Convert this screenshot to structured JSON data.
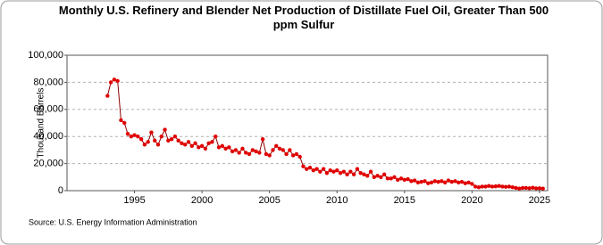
{
  "chart_data": {
    "type": "line",
    "title": "Monthly U.S. Refinery and Blender Net Production of Distillate Fuel Oil, Greater Than 500 ppm Sulfur",
    "y_label": "Thousand Barrels",
    "source": "Source: U.S. Energy Information Administration",
    "color": "#8b0000",
    "marker_color": "#e00000",
    "grid": true,
    "xlim": [
      1990,
      2025.6
    ],
    "xticks": [
      1995,
      2000,
      2005,
      2010,
      2015,
      2020,
      2025
    ],
    "ylim": [
      0,
      100000
    ],
    "yticks": [
      0,
      {
        "value": 20000,
        "label": "20,000"
      },
      {
        "value": 40000,
        "label": "40,000"
      },
      {
        "value": 60000,
        "label": "60,000"
      },
      {
        "value": 80000,
        "label": "80,000"
      },
      {
        "value": 100000,
        "label": "100,000"
      }
    ],
    "x": [
      1993,
      1993.25,
      1993.5,
      1993.75,
      1994,
      1994.25,
      1994.5,
      1994.75,
      1995,
      1995.25,
      1995.5,
      1995.75,
      1996,
      1996.25,
      1996.5,
      1996.75,
      1997,
      1997.25,
      1997.5,
      1997.75,
      1998,
      1998.25,
      1998.5,
      1998.75,
      1999,
      1999.25,
      1999.5,
      1999.75,
      2000,
      2000.25,
      2000.5,
      2000.75,
      2001,
      2001.25,
      2001.5,
      2001.75,
      2002,
      2002.25,
      2002.5,
      2002.75,
      2003,
      2003.25,
      2003.5,
      2003.75,
      2004,
      2004.25,
      2004.5,
      2004.75,
      2005,
      2005.25,
      2005.5,
      2005.75,
      2006,
      2006.25,
      2006.5,
      2006.75,
      2007,
      2007.25,
      2007.5,
      2007.75,
      2008,
      2008.25,
      2008.5,
      2008.75,
      2009,
      2009.25,
      2009.5,
      2009.75,
      2010,
      2010.25,
      2010.5,
      2010.75,
      2011,
      2011.25,
      2011.5,
      2011.75,
      2012,
      2012.25,
      2012.5,
      2012.75,
      2013,
      2013.25,
      2013.5,
      2013.75,
      2014,
      2014.25,
      2014.5,
      2014.75,
      2015,
      2015.25,
      2015.5,
      2015.75,
      2016,
      2016.25,
      2016.5,
      2016.75,
      2017,
      2017.25,
      2017.5,
      2017.75,
      2018,
      2018.25,
      2018.5,
      2018.75,
      2019,
      2019.25,
      2019.5,
      2019.75,
      2020,
      2020.25,
      2020.5,
      2020.75,
      2021,
      2021.25,
      2021.5,
      2021.75,
      2022,
      2022.25,
      2022.5,
      2022.75,
      2023,
      2023.25,
      2023.5,
      2023.75,
      2024,
      2024.25,
      2024.5,
      2024.75,
      2025,
      2025.25
    ],
    "values": [
      70000,
      80000,
      82000,
      81000,
      52000,
      50000,
      42000,
      40000,
      41000,
      40000,
      38000,
      34000,
      36000,
      43000,
      37000,
      34000,
      40000,
      45000,
      37000,
      38000,
      40000,
      37000,
      35000,
      34000,
      36000,
      33000,
      35000,
      32000,
      33000,
      31000,
      35000,
      36000,
      40000,
      32000,
      33000,
      31000,
      32000,
      29000,
      30000,
      28000,
      31000,
      28000,
      27000,
      30000,
      29000,
      28000,
      38000,
      27000,
      26000,
      30000,
      33000,
      31000,
      30000,
      27000,
      30000,
      26000,
      27000,
      25000,
      18000,
      16000,
      17000,
      15000,
      16000,
      14000,
      16000,
      13000,
      15000,
      14000,
      15000,
      13000,
      14000,
      12000,
      14000,
      12000,
      16000,
      13000,
      12000,
      11000,
      14000,
      10000,
      11000,
      10000,
      12000,
      9000,
      9000,
      10000,
      8000,
      9000,
      8000,
      8500,
      7000,
      7500,
      6000,
      6500,
      7000,
      5500,
      6000,
      7000,
      6500,
      7000,
      6000,
      7500,
      6500,
      7000,
      6000,
      6500,
      5500,
      6000,
      5000,
      3000,
      2500,
      3000,
      3000,
      3500,
      3000,
      3200,
      3500,
      3000,
      2800,
      3000,
      2500,
      2000,
      1500,
      2000,
      2000,
      1800,
      2200,
      1700,
      1800,
      1500
    ]
  }
}
